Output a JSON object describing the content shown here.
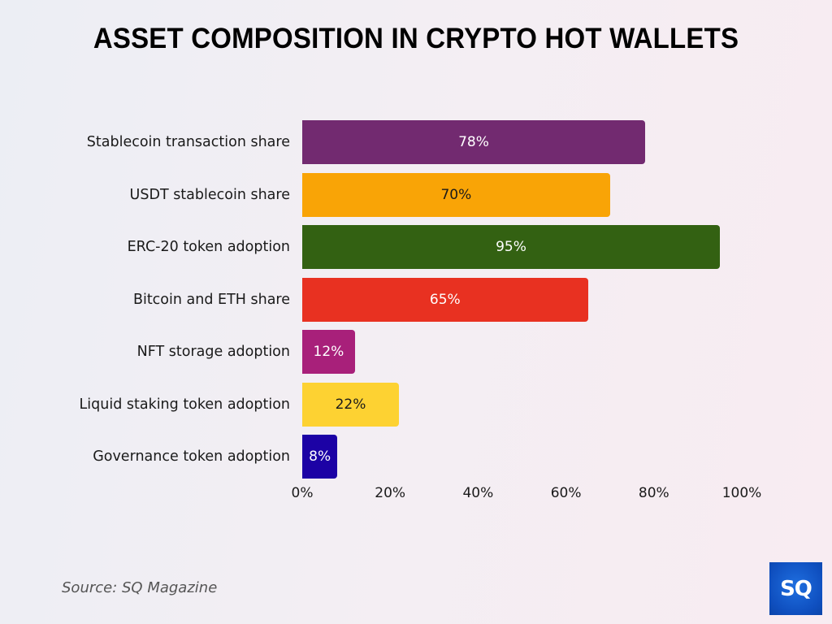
{
  "header": {
    "title": "ASSET COMPOSITION IN CRYPTO HOT WALLETS"
  },
  "footer": {
    "source": "Source: SQ Magazine",
    "logo_text": "SQ"
  },
  "chart_data": {
    "type": "bar",
    "orientation": "horizontal",
    "title": "ASSET COMPOSITION IN CRYPTO HOT WALLETS",
    "xlabel": "",
    "ylabel": "",
    "xlim": [
      0,
      100
    ],
    "grid": false,
    "legend": "none",
    "categories": [
      "Stablecoin transaction share",
      "USDT stablecoin share",
      "ERC-20 token adoption",
      "Bitcoin and ETH share",
      "NFT storage adoption",
      "Liquid staking token adoption",
      "Governance token adoption"
    ],
    "values": [
      78,
      70,
      95,
      65,
      12,
      22,
      8
    ],
    "value_labels": [
      "78%",
      "70%",
      "95%",
      "65%",
      "12%",
      "22%",
      "8%"
    ],
    "colors": [
      "#722a70",
      "#f9a406",
      "#336112",
      "#e83121",
      "#a8207a",
      "#fdd232",
      "#1c02a5"
    ],
    "label_colors": [
      "#ffffff",
      "#1a1a1a",
      "#ffffff",
      "#ffffff",
      "#ffffff",
      "#1a1a1a",
      "#ffffff"
    ],
    "x_ticks": [
      "0%",
      "20%",
      "40%",
      "60%",
      "80%",
      "100%"
    ],
    "x_tick_values": [
      0,
      20,
      40,
      60,
      80,
      100
    ],
    "source": "Source: SQ Magazine"
  }
}
